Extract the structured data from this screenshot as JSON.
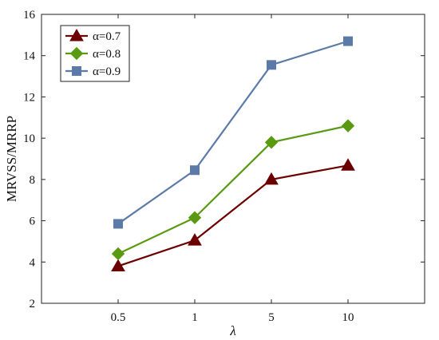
{
  "chart_data": {
    "type": "line",
    "title": "",
    "xlabel": "λ",
    "ylabel": "MRVSS/MRRP",
    "categories": [
      "0.5",
      "1",
      "5",
      "10"
    ],
    "ylim": [
      2,
      16
    ],
    "yticks": [
      2,
      4,
      6,
      8,
      10,
      12,
      14,
      16
    ],
    "grid": false,
    "legend_position": "top-left",
    "series": [
      {
        "name": "α=0.7",
        "values": [
          3.8,
          5.05,
          8.0,
          8.68
        ],
        "color": "#6b0000",
        "marker": "triangle"
      },
      {
        "name": "α=0.8",
        "values": [
          4.4,
          6.15,
          9.8,
          10.6
        ],
        "color": "#5a9a12",
        "marker": "diamond"
      },
      {
        "name": "α=0.9",
        "values": [
          5.85,
          8.45,
          13.55,
          14.7
        ],
        "color": "#5b7aa8",
        "marker": "square"
      }
    ]
  }
}
